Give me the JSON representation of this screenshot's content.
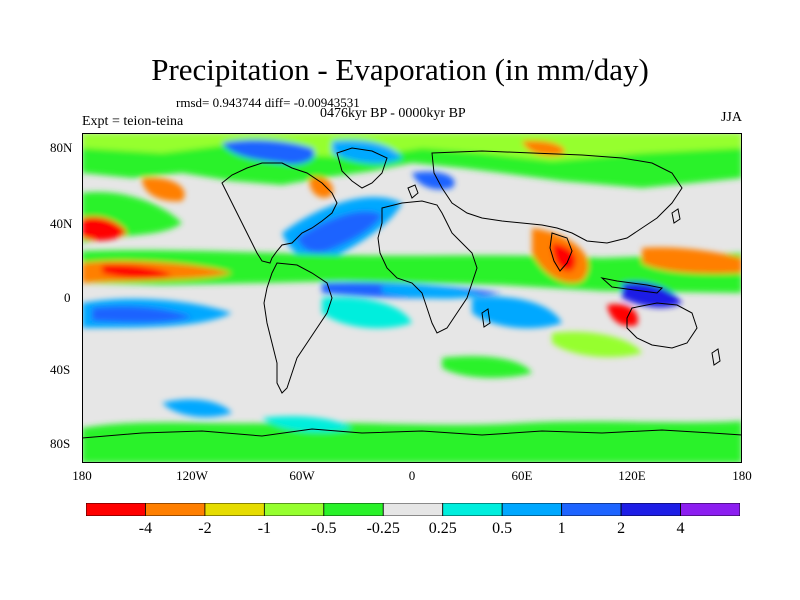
{
  "title": "Precipitation - Evaporation (in mm/day)",
  "stats": "rmsd= 0.943744 diff= -0.00943531",
  "subtitle": "0476kyr BP - 0000kyr BP",
  "left_string": "Expt = teion-teina",
  "right_string": "JJA",
  "lat_labels": [
    "80N",
    "40N",
    "0",
    "40S",
    "80S"
  ],
  "lon_labels": [
    "180",
    "120W",
    "60W",
    "0",
    "60E",
    "120E",
    "180"
  ],
  "colorbar": {
    "labels": [
      "-4",
      "-2",
      "-1",
      "-0.5",
      "-0.25",
      "0.25",
      "0.5",
      "1",
      "2",
      "4"
    ],
    "colors": [
      "#ff0000",
      "#ff7f00",
      "#e6dc00",
      "#96ff2e",
      "#29f229",
      "#e6e6e6",
      "#00eedd",
      "#00a8ff",
      "#1e64ff",
      "#1e1ee6",
      "#8c1ef0"
    ]
  },
  "colors": {
    "background": "#e6e6e6",
    "land_outline": "#000000"
  }
}
